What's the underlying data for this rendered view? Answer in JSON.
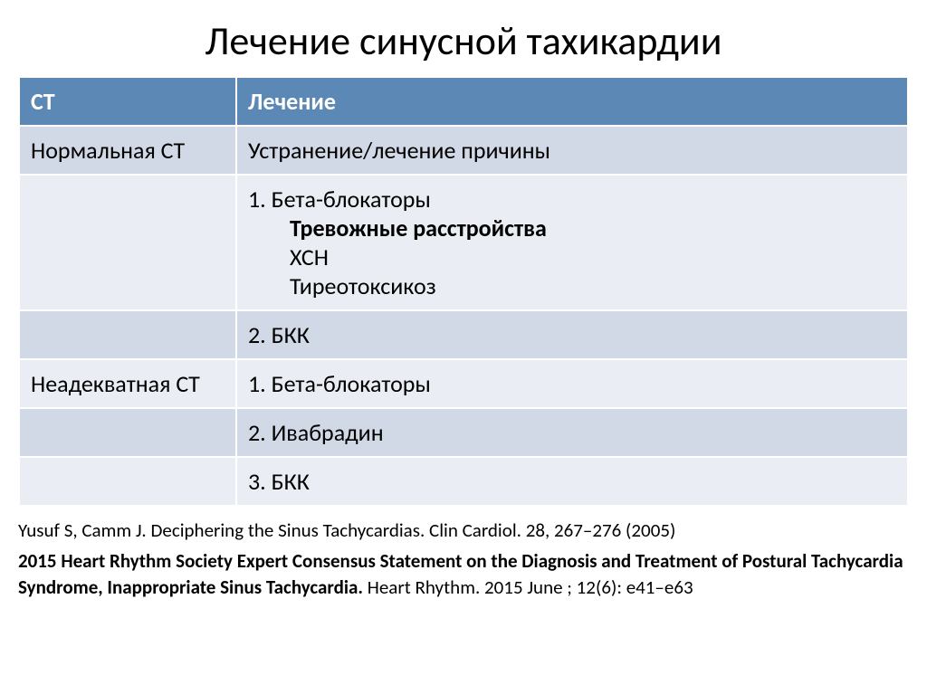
{
  "title": "Лечение синусной тахикардии",
  "headers": {
    "col1": "СТ",
    "col2": "Лечение"
  },
  "rows": {
    "r1c1": "Нормальная СТ",
    "r1c2": "Устранение/лечение причины",
    "r2c1": "",
    "r2c2_line1": "1.  Бета-блокаторы",
    "r2c2_sub1": "Тревожные расстройства",
    "r2c2_sub2": "ХСН",
    "r2c2_sub3": "Тиреотоксикоз",
    "r3c1": "",
    "r3c2": " 2. БКК",
    "r4c1": "Неадекватная СТ",
    "r4c2": "1. Бета-блокаторы",
    "r5c1": "",
    "r5c2": "2. Ивабрадин",
    "r6c1": "",
    "r6c2": "3. БКК"
  },
  "refs": {
    "ref1": "Yusuf S, Camm J. Deciphering the Sinus Tachycardias. Clin Cardiol. 28, 267–276 (2005)",
    "ref2_bold": "2015 Heart Rhythm Society Expert Consensus Statement on the Diagnosis and Treatment of Postural Tachycardia Syndrome, Inappropriate Sinus Tachycardia.",
    "ref2_rest": " Heart Rhythm. 2015 June ; 12(6): e41–e63"
  }
}
